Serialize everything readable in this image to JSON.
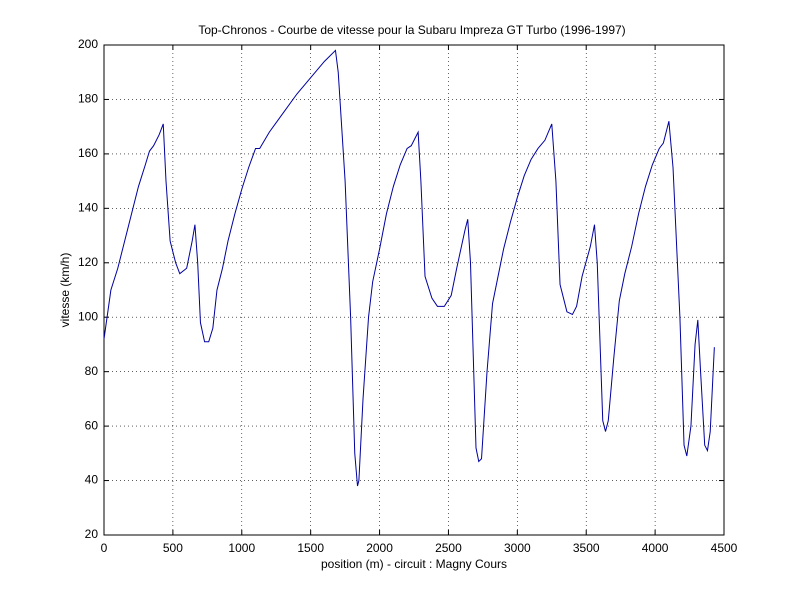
{
  "chart_data": {
    "type": "line",
    "title": "Top-Chronos - Courbe de vitesse pour la Subaru Impreza GT Turbo (1996-1997)",
    "x_label": "position (m) - circuit : Magny Cours",
    "y_label": "vitesse (km/h)",
    "x": [
      0,
      50,
      100,
      150,
      200,
      250,
      300,
      330,
      360,
      400,
      430,
      450,
      480,
      520,
      550,
      600,
      640,
      660,
      680,
      700,
      730,
      760,
      790,
      820,
      860,
      900,
      950,
      1000,
      1050,
      1100,
      1130,
      1200,
      1300,
      1400,
      1500,
      1600,
      1680,
      1700,
      1750,
      1790,
      1820,
      1840,
      1850,
      1880,
      1920,
      1950,
      2000,
      2050,
      2100,
      2150,
      2200,
      2230,
      2280,
      2300,
      2330,
      2380,
      2420,
      2470,
      2520,
      2560,
      2620,
      2640,
      2660,
      2700,
      2720,
      2740,
      2780,
      2820,
      2860,
      2900,
      2950,
      3000,
      3050,
      3100,
      3150,
      3200,
      3250,
      3280,
      3310,
      3360,
      3400,
      3430,
      3470,
      3530,
      3560,
      3580,
      3620,
      3640,
      3660,
      3700,
      3740,
      3780,
      3830,
      3880,
      3930,
      3980,
      4030,
      4060,
      4100,
      4130,
      4180,
      4210,
      4230,
      4260,
      4290,
      4310,
      4330,
      4360,
      4380,
      4400,
      4430
    ],
    "series": [
      {
        "name": "vitesse",
        "color": "#0000a0",
        "values": [
          92,
          110,
          118,
          128,
          138,
          148,
          156,
          161,
          163,
          167,
          171,
          150,
          128,
          120,
          116,
          118,
          128,
          134,
          120,
          98,
          91,
          91,
          96,
          110,
          118,
          128,
          138,
          147,
          155,
          162,
          162,
          168,
          175,
          182,
          188,
          194,
          198,
          190,
          150,
          100,
          50,
          38,
          40,
          70,
          100,
          113,
          125,
          138,
          148,
          156,
          162,
          163,
          168,
          150,
          115,
          107,
          104,
          104,
          108,
          118,
          132,
          136,
          120,
          52,
          47,
          48,
          80,
          105,
          115,
          125,
          135,
          144,
          152,
          158,
          162,
          165,
          171,
          150,
          112,
          102,
          101,
          104,
          115,
          126,
          134,
          120,
          62,
          58,
          62,
          85,
          106,
          116,
          126,
          138,
          148,
          156,
          162,
          164,
          172,
          155,
          100,
          53,
          49,
          60,
          90,
          99,
          80,
          53,
          51,
          58,
          89
        ]
      }
    ],
    "xlim": [
      0,
      4500
    ],
    "xticks": [
      0,
      500,
      1000,
      1500,
      2000,
      2500,
      3000,
      3500,
      4000,
      4500
    ],
    "ylim": [
      20,
      200
    ],
    "yticks": [
      20,
      40,
      60,
      80,
      100,
      120,
      140,
      160,
      180,
      200
    ],
    "grid": true
  }
}
